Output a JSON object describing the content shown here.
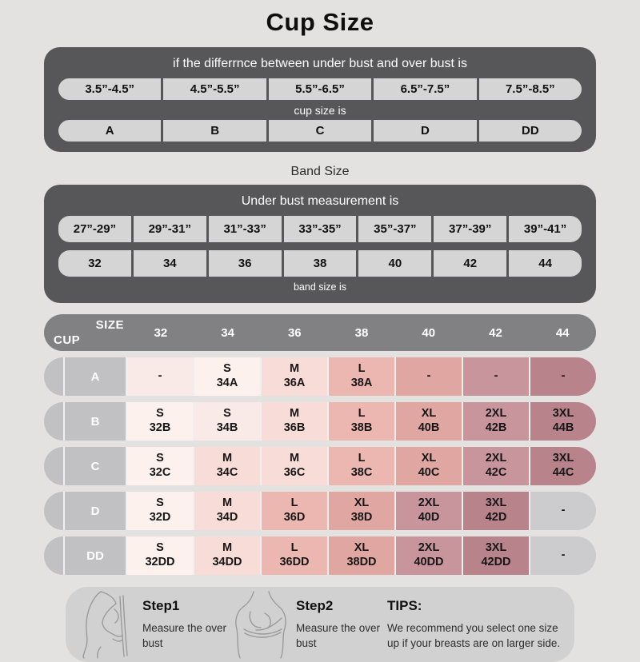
{
  "title": "Cup Size",
  "colors": {
    "page_bg": "#e3e2e0",
    "box_dark": "#57575a",
    "pill_bg": "#d6d5d6",
    "header_bar": "#818184",
    "label_gray": "#c1c0c2",
    "cell_gray": "#cccbcd",
    "footer_bg": "#d2d1d2",
    "separator": "#f1efee",
    "sketch_stroke": "#9b9b9b"
  },
  "cup_section": {
    "header": "if the differrnce between under bust and over bust is",
    "ranges": [
      "3.5”-4.5”",
      "4.5”-5.5”",
      "5.5”-6.5”",
      "6.5”-7.5”",
      "7.5”-8.5”"
    ],
    "subtitle": "cup size is",
    "cups": [
      "A",
      "B",
      "C",
      "D",
      "DD"
    ]
  },
  "band_section": {
    "label": "Band Size",
    "header": "Under bust measurement is",
    "ranges": [
      "27”-29”",
      "29”-31”",
      "31”-33”",
      "33”-35”",
      "35”-37”",
      "37”-39”",
      "39”-41”"
    ],
    "bands": [
      "32",
      "34",
      "36",
      "38",
      "40",
      "42",
      "44"
    ],
    "subtitle": "band size is"
  },
  "size_table": {
    "corner_top": "SIZE",
    "corner_bottom": "CUP",
    "columns": [
      "32",
      "34",
      "36",
      "38",
      "40",
      "42",
      "44"
    ],
    "rows": [
      {
        "label": "A",
        "cells": [
          {
            "t1": "-",
            "t2": "",
            "bg": "#f9e9e7"
          },
          {
            "t1": "S",
            "t2": "34A",
            "bg": "#fdf1ee"
          },
          {
            "t1": "M",
            "t2": "36A",
            "bg": "#f8dcd7"
          },
          {
            "t1": "L",
            "t2": "38A",
            "bg": "#edb7b1"
          },
          {
            "t1": "-",
            "t2": "",
            "bg": "#dfa6a2"
          },
          {
            "t1": "-",
            "t2": "",
            "bg": "#c9959c"
          },
          {
            "t1": "-",
            "t2": "",
            "bg": "#b9838c"
          }
        ]
      },
      {
        "label": "B",
        "cells": [
          {
            "t1": "S",
            "t2": "32B",
            "bg": "#fdf1ee"
          },
          {
            "t1": "S",
            "t2": "34B",
            "bg": "#f9e9e7"
          },
          {
            "t1": "M",
            "t2": "36B",
            "bg": "#f8dcd7"
          },
          {
            "t1": "L",
            "t2": "38B",
            "bg": "#edb7b1"
          },
          {
            "t1": "XL",
            "t2": "40B",
            "bg": "#dfa6a2"
          },
          {
            "t1": "2XL",
            "t2": "42B",
            "bg": "#c9959c"
          },
          {
            "t1": "3XL",
            "t2": "44B",
            "bg": "#b9838c"
          }
        ]
      },
      {
        "label": "C",
        "cells": [
          {
            "t1": "S",
            "t2": "32C",
            "bg": "#fdf1ee"
          },
          {
            "t1": "M",
            "t2": "34C",
            "bg": "#f8dcd7"
          },
          {
            "t1": "M",
            "t2": "36C",
            "bg": "#f8dcd7"
          },
          {
            "t1": "L",
            "t2": "38C",
            "bg": "#edb7b1"
          },
          {
            "t1": "XL",
            "t2": "40C",
            "bg": "#dfa6a2"
          },
          {
            "t1": "2XL",
            "t2": "42C",
            "bg": "#c9959c"
          },
          {
            "t1": "3XL",
            "t2": "44C",
            "bg": "#b9838c"
          }
        ]
      },
      {
        "label": "D",
        "cells": [
          {
            "t1": "S",
            "t2": "32D",
            "bg": "#fdf1ee"
          },
          {
            "t1": "M",
            "t2": "34D",
            "bg": "#f8dcd7"
          },
          {
            "t1": "L",
            "t2": "36D",
            "bg": "#edb7b1"
          },
          {
            "t1": "XL",
            "t2": "38D",
            "bg": "#dfa6a2"
          },
          {
            "t1": "2XL",
            "t2": "40D",
            "bg": "#c9959c"
          },
          {
            "t1": "3XL",
            "t2": "42D",
            "bg": "#b9838c"
          },
          {
            "t1": "-",
            "t2": "",
            "bg": "#cccbcd"
          }
        ]
      },
      {
        "label": "DD",
        "cells": [
          {
            "t1": "S",
            "t2": "32DD",
            "bg": "#fdf1ee"
          },
          {
            "t1": "M",
            "t2": "34DD",
            "bg": "#f8dcd7"
          },
          {
            "t1": "L",
            "t2": "36DD",
            "bg": "#edb7b1"
          },
          {
            "t1": "XL",
            "t2": "38DD",
            "bg": "#dfa6a2"
          },
          {
            "t1": "2XL",
            "t2": "40DD",
            "bg": "#c9959c"
          },
          {
            "t1": "3XL",
            "t2": "42DD",
            "bg": "#b9838c"
          },
          {
            "t1": "-",
            "t2": "",
            "bg": "#cccbcd"
          }
        ]
      }
    ]
  },
  "footer": {
    "steps": [
      {
        "title": "Step1",
        "desc": "Measure the over bust"
      },
      {
        "title": "Step2",
        "desc": "Measure the over bust"
      }
    ],
    "tips_title": "TIPS:",
    "tips_text": "We recommend you select one size up if your breasts are on larger side."
  },
  "chart_data": {
    "type": "table",
    "title": "Cup Size",
    "cup_rule": {
      "condition": "if the differrnce between under bust and over bust is",
      "ranges_inches": [
        "3.5-4.5",
        "4.5-5.5",
        "5.5-6.5",
        "6.5-7.5",
        "7.5-8.5"
      ],
      "cup_size": [
        "A",
        "B",
        "C",
        "D",
        "DD"
      ]
    },
    "band_rule": {
      "condition": "Under bust measurement is",
      "ranges_inches": [
        "27-29",
        "29-31",
        "31-33",
        "33-35",
        "35-37",
        "37-39",
        "39-41"
      ],
      "band_size": [
        32,
        34,
        36,
        38,
        40,
        42,
        44
      ]
    },
    "columns": [
      "CUP/SIZE",
      "32",
      "34",
      "36",
      "38",
      "40",
      "42",
      "44"
    ],
    "rows": [
      [
        "A",
        "-",
        "S 34A",
        "M 36A",
        "L 38A",
        "-",
        "-",
        "-"
      ],
      [
        "B",
        "S 32B",
        "S 34B",
        "M 36B",
        "L 38B",
        "XL 40B",
        "2XL 42B",
        "3XL 44B"
      ],
      [
        "C",
        "S 32C",
        "M 34C",
        "M 36C",
        "L 38C",
        "XL 40C",
        "2XL 42C",
        "3XL 44C"
      ],
      [
        "D",
        "S 32D",
        "M 34D",
        "L 36D",
        "XL 38D",
        "2XL 40D",
        "3XL 42D",
        "-"
      ],
      [
        "DD",
        "S 32DD",
        "M 34DD",
        "L 36DD",
        "XL 38DD",
        "2XL 40DD",
        "3XL 42DD",
        "-"
      ]
    ]
  }
}
